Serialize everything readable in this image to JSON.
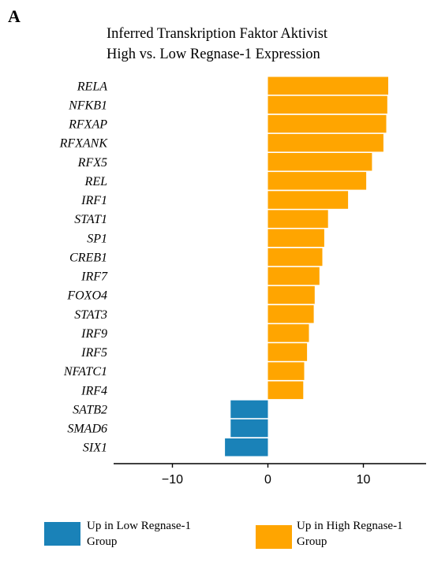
{
  "panel_label": "A",
  "chart_data": {
    "type": "bar",
    "orientation": "horizontal",
    "title": "Inferred Transkription Faktor Aktivist High vs. Low Regnase-1 Expression",
    "title_lines": [
      "Inferred Transkription Faktor Aktivist",
      "High vs. Low Regnase-1 Expression"
    ],
    "xlabel": "",
    "ylabel": "",
    "xlim": [
      -16,
      16
    ],
    "xticks": [
      -10,
      0,
      10
    ],
    "xtick_labels": [
      "−10",
      "0",
      "10"
    ],
    "grid": false,
    "categories": [
      "RELA",
      "NFKB1",
      "RFXAP",
      "RFXANK",
      "RFX5",
      "REL",
      "IRF1",
      "STAT1",
      "SP1",
      "CREB1",
      "IRF7",
      "FOXO4",
      "STAT3",
      "IRF9",
      "IRF5",
      "NFATC1",
      "IRF4",
      "SATB2",
      "SMAD6",
      "SIX1"
    ],
    "values": [
      12.6,
      12.5,
      12.4,
      12.1,
      10.9,
      10.3,
      8.4,
      6.3,
      5.9,
      5.7,
      5.4,
      4.9,
      4.8,
      4.3,
      4.1,
      3.8,
      3.7,
      -3.9,
      -3.9,
      -4.5
    ],
    "groups": [
      "high",
      "high",
      "high",
      "high",
      "high",
      "high",
      "high",
      "high",
      "high",
      "high",
      "high",
      "high",
      "high",
      "high",
      "high",
      "high",
      "high",
      "low",
      "low",
      "low"
    ],
    "colors": {
      "high": "#FFA500",
      "low": "#1A82B8"
    },
    "legend": {
      "placement": "bottom",
      "entries": [
        {
          "key": "low",
          "lines": [
            "Up in Low Regnase-1",
            "Group"
          ]
        },
        {
          "key": "high",
          "lines": [
            "Up in High Regnase-1",
            "Group"
          ]
        }
      ]
    }
  }
}
